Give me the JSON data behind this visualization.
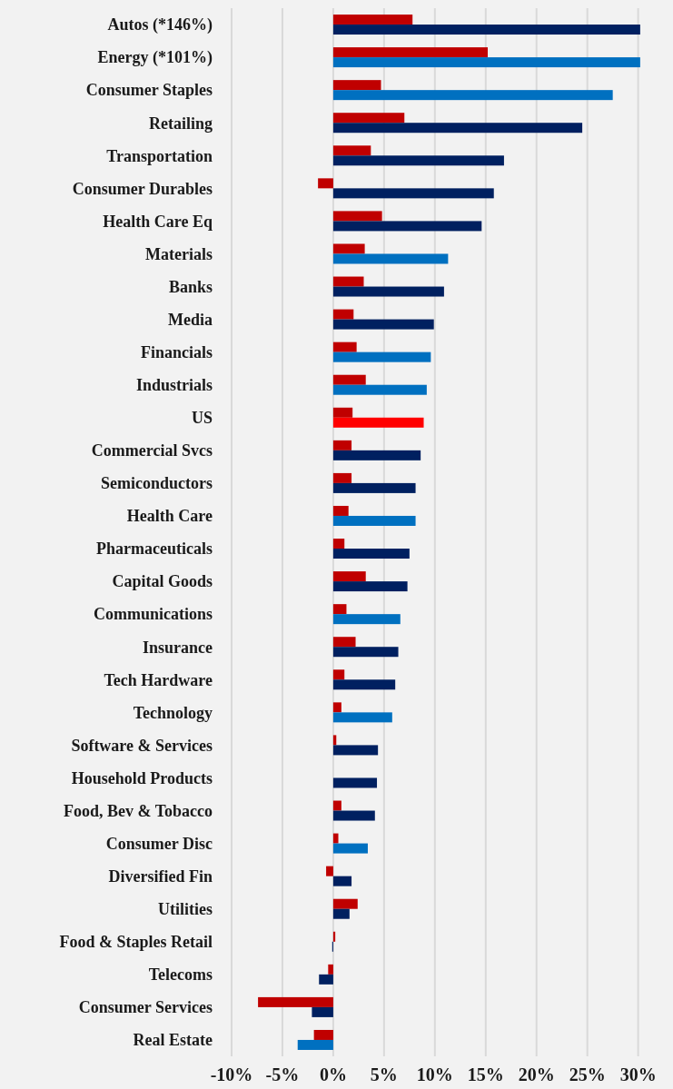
{
  "chart_data": {
    "type": "bar",
    "orientation": "horizontal",
    "categories": [
      "Autos (*146%)",
      "Energy (*101%)",
      "Consumer Staples",
      "Retailing",
      "Transportation",
      "Consumer Durables",
      "Health Care Eq",
      "Materials",
      "Banks",
      "Media",
      "Financials",
      "Industrials",
      "US",
      "Commercial Svcs",
      "Semiconductors",
      "Health Care",
      "Pharmaceuticals",
      "Capital Goods",
      "Communications",
      "Insurance",
      "Tech Hardware",
      "Technology",
      "Software & Services",
      "Household Products",
      "Food, Bev & Tobacco",
      "Consumer Disc",
      "Diversified Fin",
      "Utilities",
      "Food & Staples Retail",
      "Telecoms",
      "Consumer Services",
      "Real Estate"
    ],
    "series": [
      {
        "color": "#c00000",
        "values": [
          7.8,
          15.2,
          4.7,
          7.0,
          3.7,
          -1.5,
          4.8,
          3.1,
          3.0,
          2.0,
          2.3,
          3.2,
          1.9,
          1.8,
          1.8,
          1.5,
          1.1,
          3.2,
          1.3,
          2.2,
          1.1,
          0.8,
          0.3,
          null,
          0.8,
          0.5,
          -0.7,
          2.4,
          0.2,
          -0.5,
          -7.4,
          -1.9
        ]
      },
      {
        "colors": [
          "#002060",
          "#0070c0",
          "#0070c0",
          "#002060",
          "#002060",
          "#002060",
          "#002060",
          "#0070c0",
          "#002060",
          "#002060",
          "#0070c0",
          "#0070c0",
          "#ff0000",
          "#002060",
          "#002060",
          "#0070c0",
          "#002060",
          "#002060",
          "#0070c0",
          "#002060",
          "#002060",
          "#0070c0",
          "#002060",
          "#002060",
          "#002060",
          "#0070c0",
          "#002060",
          "#002060",
          "#002060",
          "#002060",
          "#002060",
          "#0070c0"
        ],
        "values": [
          30.2,
          30.2,
          27.5,
          24.5,
          16.8,
          15.8,
          14.6,
          11.3,
          10.9,
          9.9,
          9.6,
          9.2,
          8.9,
          8.6,
          8.1,
          8.1,
          7.5,
          7.3,
          6.6,
          6.4,
          6.1,
          5.8,
          4.4,
          4.3,
          4.1,
          3.4,
          1.8,
          1.6,
          -0.1,
          -1.4,
          -2.1,
          -3.5
        ]
      }
    ],
    "xlim": [
      -10,
      30.3
    ],
    "xticks": [
      {
        "value": -10,
        "label": "-10%"
      },
      {
        "value": -5,
        "label": "-5%"
      },
      {
        "value": 0,
        "label": "0%"
      },
      {
        "value": 5,
        "label": "5%"
      },
      {
        "value": 10,
        "label": "10%"
      },
      {
        "value": 15,
        "label": "15%"
      },
      {
        "value": 20,
        "label": "20%"
      },
      {
        "value": 25,
        "label": "25%"
      },
      {
        "value": 30,
        "label": "30%"
      }
    ],
    "grid": "x"
  }
}
